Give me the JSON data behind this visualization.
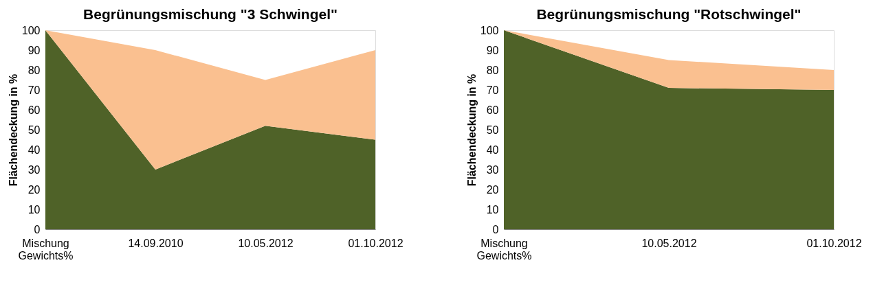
{
  "chart_data": [
    {
      "type": "area",
      "stacked": true,
      "title": "Begrünungsmischung \"3 Schwingel\"",
      "ylabel": "Flächendeckung in %",
      "categories": [
        "Mischung\nGewichts%",
        "14.09.2010",
        "10.05.2012",
        "01.10.2012"
      ],
      "series": [
        {
          "color": "#4f6228",
          "values": [
            100,
            30,
            52,
            45
          ]
        },
        {
          "color": "#fac090",
          "values": [
            0,
            60,
            23,
            45
          ]
        }
      ],
      "ylim": [
        0,
        100
      ],
      "yticks": [
        0,
        10,
        20,
        30,
        40,
        50,
        60,
        70,
        80,
        90,
        100
      ],
      "grid": false,
      "legend": false
    },
    {
      "type": "area",
      "stacked": true,
      "title": "Begrünungsmischung \"Rotschwingel\"",
      "ylabel": "Flächendeckung in %",
      "categories": [
        "Mischung\nGewichts%",
        "10.05.2012",
        "01.10.2012"
      ],
      "series": [
        {
          "color": "#4f6228",
          "values": [
            100,
            71,
            70
          ]
        },
        {
          "color": "#fac090",
          "values": [
            0,
            14,
            10
          ]
        }
      ],
      "ylim": [
        0,
        100
      ],
      "yticks": [
        0,
        10,
        20,
        30,
        40,
        50,
        60,
        70,
        80,
        90,
        100
      ],
      "grid": false,
      "legend": false
    }
  ]
}
